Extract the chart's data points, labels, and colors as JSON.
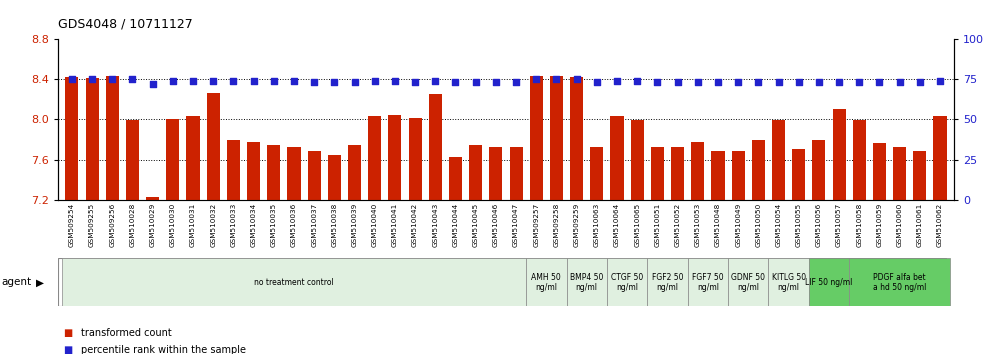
{
  "title": "GDS4048 / 10711127",
  "bar_color": "#cc2200",
  "dot_color": "#2222cc",
  "ylim_left": [
    7.2,
    8.8
  ],
  "ylim_right": [
    0,
    100
  ],
  "yticks_left": [
    7.2,
    7.6,
    8.0,
    8.4,
    8.8
  ],
  "yticks_right": [
    0,
    25,
    50,
    75,
    100
  ],
  "grid_lines": [
    7.6,
    8.0,
    8.4
  ],
  "samples": [
    "GSM509254",
    "GSM509255",
    "GSM509256",
    "GSM510028",
    "GSM510029",
    "GSM510030",
    "GSM510031",
    "GSM510032",
    "GSM510033",
    "GSM510034",
    "GSM510035",
    "GSM510036",
    "GSM510037",
    "GSM510038",
    "GSM510039",
    "GSM510040",
    "GSM510041",
    "GSM510042",
    "GSM510043",
    "GSM510044",
    "GSM510045",
    "GSM510046",
    "GSM510047",
    "GSM509257",
    "GSM509258",
    "GSM509259",
    "GSM510063",
    "GSM510064",
    "GSM510065",
    "GSM510051",
    "GSM510052",
    "GSM510053",
    "GSM510048",
    "GSM510049",
    "GSM510050",
    "GSM510054",
    "GSM510055",
    "GSM510056",
    "GSM510057",
    "GSM510058",
    "GSM510059",
    "GSM510060",
    "GSM510061",
    "GSM510062"
  ],
  "bar_values": [
    8.42,
    8.41,
    8.43,
    7.99,
    7.23,
    8.0,
    8.03,
    8.26,
    7.8,
    7.78,
    7.75,
    7.73,
    7.69,
    7.65,
    7.75,
    8.03,
    8.04,
    8.01,
    8.25,
    7.63,
    7.75,
    7.73,
    7.73,
    8.43,
    8.43,
    8.42,
    7.73,
    8.03,
    7.99,
    7.73,
    7.73,
    7.78,
    7.69,
    7.69,
    7.8,
    7.99,
    7.71,
    7.8,
    8.1,
    7.99,
    7.77,
    7.73,
    7.69,
    8.03
  ],
  "dot_values": [
    75,
    75,
    75,
    75,
    72,
    74,
    74,
    74,
    74,
    74,
    74,
    74,
    73,
    73,
    73,
    74,
    74,
    73,
    74,
    73,
    73,
    73,
    73,
    75,
    75,
    75,
    73,
    74,
    74,
    73,
    73,
    73,
    73,
    73,
    73,
    73,
    73,
    73,
    73,
    73,
    73,
    73,
    73,
    74
  ],
  "agent_groups": [
    {
      "label": "no treatment control",
      "start": 0,
      "end": 23,
      "color": "#e0f0e0",
      "bright": false
    },
    {
      "label": "AMH 50\nng/ml",
      "start": 23,
      "end": 25,
      "color": "#e0f0e0",
      "bright": false
    },
    {
      "label": "BMP4 50\nng/ml",
      "start": 25,
      "end": 27,
      "color": "#e0f0e0",
      "bright": false
    },
    {
      "label": "CTGF 50\nng/ml",
      "start": 27,
      "end": 29,
      "color": "#e0f0e0",
      "bright": false
    },
    {
      "label": "FGF2 50\nng/ml",
      "start": 29,
      "end": 31,
      "color": "#e0f0e0",
      "bright": false
    },
    {
      "label": "FGF7 50\nng/ml",
      "start": 31,
      "end": 33,
      "color": "#e0f0e0",
      "bright": false
    },
    {
      "label": "GDNF 50\nng/ml",
      "start": 33,
      "end": 35,
      "color": "#e0f0e0",
      "bright": false
    },
    {
      "label": "KITLG 50\nng/ml",
      "start": 35,
      "end": 37,
      "color": "#e0f0e0",
      "bright": false
    },
    {
      "label": "LIF 50 ng/ml",
      "start": 37,
      "end": 39,
      "color": "#66cc66",
      "bright": true
    },
    {
      "label": "PDGF alfa bet\na hd 50 ng/ml",
      "start": 39,
      "end": 44,
      "color": "#66cc66",
      "bright": true
    }
  ],
  "agent_label": "agent",
  "legend_items": [
    {
      "label": "transformed count",
      "color": "#cc2200",
      "marker": "s"
    },
    {
      "label": "percentile rank within the sample",
      "color": "#2222cc",
      "marker": "s"
    }
  ],
  "fig_width": 9.96,
  "fig_height": 3.54,
  "dpi": 100
}
